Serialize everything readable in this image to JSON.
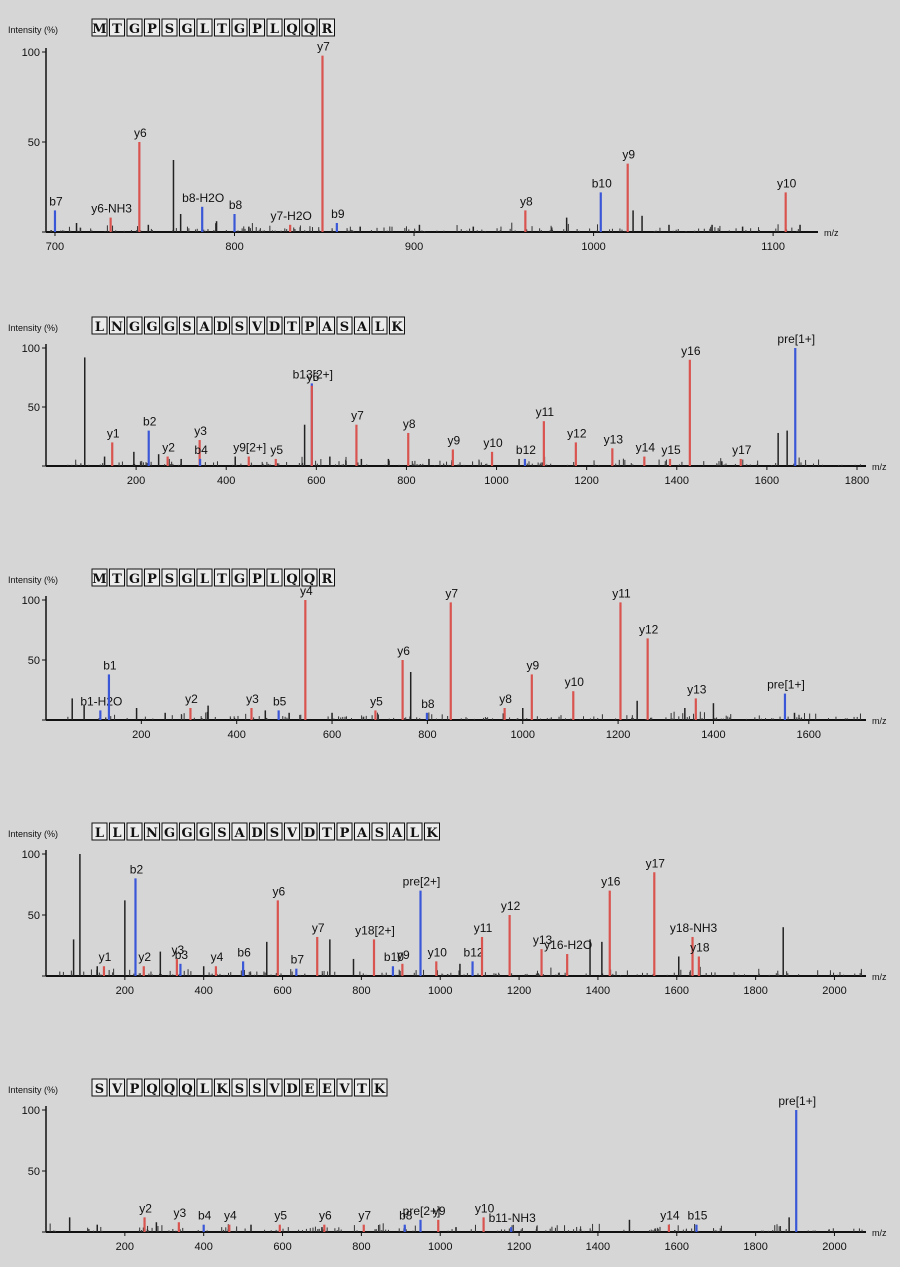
{
  "chart_data": [
    {
      "type": "bar",
      "ylabel": "Intensity (%)",
      "xlabel": "m/z",
      "sequence": [
        "M",
        "T",
        "G",
        "P",
        "S",
        "G",
        "L",
        "T",
        "G",
        "P",
        "L",
        "Q",
        "Q",
        "R"
      ],
      "xlim": [
        695,
        1125
      ],
      "ylim": [
        0,
        100
      ],
      "x_ticks": [
        700,
        800,
        900,
        1000,
        1100
      ],
      "y_ticks": [
        0,
        50,
        100
      ],
      "annotated_peaks": [
        {
          "label": "b7",
          "mz": 700,
          "intensity": 12,
          "ion": "b"
        },
        {
          "label": "y6-NH3",
          "mz": 731,
          "intensity": 8,
          "ion": "y"
        },
        {
          "label": "y6",
          "mz": 747,
          "intensity": 50,
          "ion": "y"
        },
        {
          "label": "b8-H2O",
          "mz": 782,
          "intensity": 14,
          "ion": "b"
        },
        {
          "label": "b8",
          "mz": 800,
          "intensity": 10,
          "ion": "b"
        },
        {
          "label": "y7-H2O",
          "mz": 831,
          "intensity": 4,
          "ion": "y"
        },
        {
          "label": "y7",
          "mz": 849,
          "intensity": 98,
          "ion": "y"
        },
        {
          "label": "b9",
          "mz": 857,
          "intensity": 5,
          "ion": "b"
        },
        {
          "label": "y8",
          "mz": 962,
          "intensity": 12,
          "ion": "y"
        },
        {
          "label": "b10",
          "mz": 1004,
          "intensity": 22,
          "ion": "b"
        },
        {
          "label": "y9",
          "mz": 1019,
          "intensity": 38,
          "ion": "y"
        },
        {
          "label": "y10",
          "mz": 1107,
          "intensity": 22,
          "ion": "y"
        }
      ],
      "unlabeled_peaks": [
        [
          712,
          5
        ],
        [
          752,
          4
        ],
        [
          766,
          40
        ],
        [
          770,
          10
        ],
        [
          790,
          6
        ],
        [
          808,
          3
        ],
        [
          870,
          3
        ],
        [
          903,
          4
        ],
        [
          933,
          3
        ],
        [
          985,
          8
        ],
        [
          1022,
          12
        ],
        [
          1027,
          9
        ],
        [
          1042,
          4
        ],
        [
          1066,
          4
        ],
        [
          1083,
          3
        ],
        [
          1115,
          4
        ]
      ]
    },
    {
      "type": "bar",
      "ylabel": "Intensity (%)",
      "xlabel": "m/z",
      "sequence": [
        "L",
        "N",
        "G",
        "G",
        "G",
        "S",
        "A",
        "D",
        "S",
        "V",
        "D",
        "T",
        "P",
        "A",
        "S",
        "A",
        "L",
        "K"
      ],
      "xlim": [
        0,
        1820
      ],
      "ylim": [
        0,
        100
      ],
      "x_ticks": [
        200,
        400,
        600,
        800,
        1000,
        1200,
        1400,
        1600,
        1800
      ],
      "y_ticks": [
        0,
        50,
        100
      ],
      "annotated_peaks": [
        {
          "label": "y1",
          "mz": 147,
          "intensity": 20,
          "ion": "y"
        },
        {
          "label": "b2",
          "mz": 228,
          "intensity": 30,
          "ion": "b"
        },
        {
          "label": "y2",
          "mz": 270,
          "intensity": 8,
          "ion": "y"
        },
        {
          "label": "y3",
          "mz": 341,
          "intensity": 22,
          "ion": "y"
        },
        {
          "label": "b4",
          "mz": 342,
          "intensity": 6,
          "ion": "b"
        },
        {
          "label": "y9[2+]",
          "mz": 450,
          "intensity": 8,
          "ion": "y"
        },
        {
          "label": "y5",
          "mz": 510,
          "intensity": 6,
          "ion": "y"
        },
        {
          "label": "b13[2+]",
          "mz": 590,
          "intensity": 70,
          "ion": "b"
        },
        {
          "label": "y6",
          "mz": 590,
          "intensity": 68,
          "ion": "y"
        },
        {
          "label": "y7",
          "mz": 689,
          "intensity": 35,
          "ion": "y"
        },
        {
          "label": "y8",
          "mz": 804,
          "intensity": 28,
          "ion": "y"
        },
        {
          "label": "y9",
          "mz": 903,
          "intensity": 14,
          "ion": "y"
        },
        {
          "label": "y10",
          "mz": 990,
          "intensity": 12,
          "ion": "y"
        },
        {
          "label": "b12",
          "mz": 1063,
          "intensity": 6,
          "ion": "b"
        },
        {
          "label": "y11",
          "mz": 1105,
          "intensity": 38,
          "ion": "y"
        },
        {
          "label": "y12",
          "mz": 1176,
          "intensity": 20,
          "ion": "y"
        },
        {
          "label": "y13",
          "mz": 1257,
          "intensity": 15,
          "ion": "y"
        },
        {
          "label": "y14",
          "mz": 1328,
          "intensity": 8,
          "ion": "y"
        },
        {
          "label": "y15",
          "mz": 1385,
          "intensity": 6,
          "ion": "y"
        },
        {
          "label": "y16",
          "mz": 1429,
          "intensity": 90,
          "ion": "y"
        },
        {
          "label": "y17",
          "mz": 1542,
          "intensity": 6,
          "ion": "y"
        },
        {
          "label": "pre[1+]",
          "mz": 1663,
          "intensity": 100,
          "ion": "b"
        }
      ],
      "unlabeled_peaks": [
        [
          86,
          92
        ],
        [
          130,
          8
        ],
        [
          195,
          12
        ],
        [
          250,
          10
        ],
        [
          300,
          6
        ],
        [
          420,
          8
        ],
        [
          574,
          35
        ],
        [
          630,
          8
        ],
        [
          700,
          6
        ],
        [
          760,
          6
        ],
        [
          850,
          6
        ],
        [
          1050,
          6
        ],
        [
          1500,
          4
        ],
        [
          1625,
          28
        ],
        [
          1645,
          30
        ]
      ]
    },
    {
      "type": "bar",
      "ylabel": "Intensity (%)",
      "xlabel": "m/z",
      "sequence": [
        "M",
        "T",
        "G",
        "P",
        "S",
        "G",
        "L",
        "T",
        "G",
        "P",
        "L",
        "Q",
        "Q",
        "R"
      ],
      "xlim": [
        0,
        1720
      ],
      "ylim": [
        0,
        100
      ],
      "x_ticks": [
        200,
        400,
        600,
        800,
        1000,
        1200,
        1400,
        1600
      ],
      "y_ticks": [
        0,
        50,
        100
      ],
      "annotated_peaks": [
        {
          "label": "b1-H2O",
          "mz": 114,
          "intensity": 8,
          "ion": "b"
        },
        {
          "label": "b1",
          "mz": 132,
          "intensity": 38,
          "ion": "b"
        },
        {
          "label": "y2",
          "mz": 303,
          "intensity": 10,
          "ion": "y"
        },
        {
          "label": "y3",
          "mz": 431,
          "intensity": 10,
          "ion": "y"
        },
        {
          "label": "b5",
          "mz": 488,
          "intensity": 8,
          "ion": "b"
        },
        {
          "label": "y4",
          "mz": 544,
          "intensity": 100,
          "ion": "y"
        },
        {
          "label": "y5",
          "mz": 691,
          "intensity": 8,
          "ion": "y"
        },
        {
          "label": "y6",
          "mz": 748,
          "intensity": 50,
          "ion": "y"
        },
        {
          "label": "b8",
          "mz": 799,
          "intensity": 6,
          "ion": "b"
        },
        {
          "label": "y7",
          "mz": 849,
          "intensity": 98,
          "ion": "y"
        },
        {
          "label": "y8",
          "mz": 962,
          "intensity": 10,
          "ion": "y"
        },
        {
          "label": "y9",
          "mz": 1019,
          "intensity": 38,
          "ion": "y"
        },
        {
          "label": "y10",
          "mz": 1106,
          "intensity": 24,
          "ion": "y"
        },
        {
          "label": "y11",
          "mz": 1205,
          "intensity": 98,
          "ion": "y"
        },
        {
          "label": "y12",
          "mz": 1262,
          "intensity": 68,
          "ion": "y"
        },
        {
          "label": "y13",
          "mz": 1363,
          "intensity": 18,
          "ion": "y"
        },
        {
          "label": "pre[1+]",
          "mz": 1550,
          "intensity": 22,
          "ion": "b"
        }
      ],
      "unlabeled_peaks": [
        [
          55,
          18
        ],
        [
          80,
          12
        ],
        [
          190,
          10
        ],
        [
          250,
          6
        ],
        [
          340,
          12
        ],
        [
          460,
          8
        ],
        [
          510,
          6
        ],
        [
          600,
          6
        ],
        [
          765,
          40
        ],
        [
          1000,
          10
        ],
        [
          1240,
          16
        ],
        [
          1340,
          10
        ],
        [
          1400,
          14
        ],
        [
          1570,
          6
        ]
      ]
    },
    {
      "type": "bar",
      "ylabel": "Intensity (%)",
      "xlabel": "m/z",
      "sequence": [
        "L",
        "L",
        "L",
        "N",
        "G",
        "G",
        "G",
        "S",
        "A",
        "D",
        "S",
        "V",
        "D",
        "T",
        "P",
        "A",
        "S",
        "A",
        "L",
        "K"
      ],
      "xlim": [
        0,
        2080
      ],
      "ylim": [
        0,
        100
      ],
      "x_ticks": [
        200,
        400,
        600,
        800,
        1000,
        1200,
        1400,
        1600,
        1800,
        2000
      ],
      "y_ticks": [
        0,
        50,
        100
      ],
      "annotated_peaks": [
        {
          "label": "y1",
          "mz": 147,
          "intensity": 8,
          "ion": "y"
        },
        {
          "label": "b2",
          "mz": 227,
          "intensity": 80,
          "ion": "b"
        },
        {
          "label": "y2",
          "mz": 248,
          "intensity": 8,
          "ion": "y"
        },
        {
          "label": "y3",
          "mz": 332,
          "intensity": 14,
          "ion": "y"
        },
        {
          "label": "b3",
          "mz": 341,
          "intensity": 10,
          "ion": "b"
        },
        {
          "label": "y4",
          "mz": 431,
          "intensity": 8,
          "ion": "y"
        },
        {
          "label": "b6",
          "mz": 500,
          "intensity": 12,
          "ion": "b"
        },
        {
          "label": "y6",
          "mz": 588,
          "intensity": 62,
          "ion": "y"
        },
        {
          "label": "b7",
          "mz": 635,
          "intensity": 6,
          "ion": "b"
        },
        {
          "label": "y7",
          "mz": 688,
          "intensity": 32,
          "ion": "y"
        },
        {
          "label": "y18[2+]",
          "mz": 832,
          "intensity": 30,
          "ion": "y"
        },
        {
          "label": "b10",
          "mz": 880,
          "intensity": 8,
          "ion": "b"
        },
        {
          "label": "y9",
          "mz": 904,
          "intensity": 10,
          "ion": "y"
        },
        {
          "label": "pre[2+]",
          "mz": 950,
          "intensity": 70,
          "ion": "b"
        },
        {
          "label": "y10",
          "mz": 990,
          "intensity": 12,
          "ion": "y"
        },
        {
          "label": "b12",
          "mz": 1082,
          "intensity": 12,
          "ion": "b"
        },
        {
          "label": "y11",
          "mz": 1106,
          "intensity": 32,
          "ion": "y"
        },
        {
          "label": "y12",
          "mz": 1176,
          "intensity": 50,
          "ion": "y"
        },
        {
          "label": "y13",
          "mz": 1257,
          "intensity": 22,
          "ion": "y"
        },
        {
          "label": "y16-H2O",
          "mz": 1322,
          "intensity": 18,
          "ion": "y"
        },
        {
          "label": "y16",
          "mz": 1430,
          "intensity": 70,
          "ion": "y"
        },
        {
          "label": "y17",
          "mz": 1543,
          "intensity": 85,
          "ion": "y"
        },
        {
          "label": "y18-NH3",
          "mz": 1640,
          "intensity": 32,
          "ion": "y"
        },
        {
          "label": "y18",
          "mz": 1656,
          "intensity": 16,
          "ion": "y"
        }
      ],
      "unlabeled_peaks": [
        [
          70,
          30
        ],
        [
          86,
          100
        ],
        [
          130,
          8
        ],
        [
          200,
          62
        ],
        [
          290,
          20
        ],
        [
          400,
          8
        ],
        [
          560,
          28
        ],
        [
          720,
          30
        ],
        [
          780,
          14
        ],
        [
          1050,
          10
        ],
        [
          1380,
          30
        ],
        [
          1410,
          28
        ],
        [
          1605,
          16
        ],
        [
          1870,
          40
        ]
      ]
    },
    {
      "type": "bar",
      "ylabel": "Intensity (%)",
      "xlabel": "m/z",
      "sequence": [
        "S",
        "V",
        "P",
        "Q",
        "Q",
        "Q",
        "L",
        "K",
        "S",
        "S",
        "V",
        "D",
        "E",
        "E",
        "V",
        "T",
        "K"
      ],
      "xlim": [
        0,
        2080
      ],
      "ylim": [
        0,
        100
      ],
      "x_ticks": [
        200,
        400,
        600,
        800,
        1000,
        1200,
        1400,
        1600,
        1800,
        2000
      ],
      "y_ticks": [
        0,
        50,
        100
      ],
      "annotated_peaks": [
        {
          "label": "y2",
          "mz": 250,
          "intensity": 12,
          "ion": "y"
        },
        {
          "label": "y3",
          "mz": 337,
          "intensity": 8,
          "ion": "y"
        },
        {
          "label": "b4",
          "mz": 400,
          "intensity": 6,
          "ion": "b"
        },
        {
          "label": "y4",
          "mz": 465,
          "intensity": 6,
          "ion": "y"
        },
        {
          "label": "y5",
          "mz": 593,
          "intensity": 6,
          "ion": "y"
        },
        {
          "label": "y6",
          "mz": 706,
          "intensity": 6,
          "ion": "y"
        },
        {
          "label": "y7",
          "mz": 806,
          "intensity": 6,
          "ion": "y"
        },
        {
          "label": "b8",
          "mz": 910,
          "intensity": 6,
          "ion": "b"
        },
        {
          "label": "pre[2+]",
          "mz": 950,
          "intensity": 10,
          "ion": "b"
        },
        {
          "label": "y9",
          "mz": 995,
          "intensity": 10,
          "ion": "y"
        },
        {
          "label": "y10",
          "mz": 1110,
          "intensity": 12,
          "ion": "y"
        },
        {
          "label": "b11-NH3",
          "mz": 1180,
          "intensity": 4,
          "ion": "b"
        },
        {
          "label": "y14",
          "mz": 1580,
          "intensity": 6,
          "ion": "y"
        },
        {
          "label": "b15",
          "mz": 1650,
          "intensity": 6,
          "ion": "b"
        },
        {
          "label": "pre[1+]",
          "mz": 1903,
          "intensity": 100,
          "ion": "b"
        }
      ],
      "unlabeled_peaks": [
        [
          60,
          12
        ],
        [
          130,
          6
        ],
        [
          280,
          8
        ],
        [
          520,
          6
        ],
        [
          700,
          4
        ],
        [
          1040,
          4
        ],
        [
          1480,
          10
        ],
        [
          1885,
          12
        ]
      ]
    }
  ]
}
